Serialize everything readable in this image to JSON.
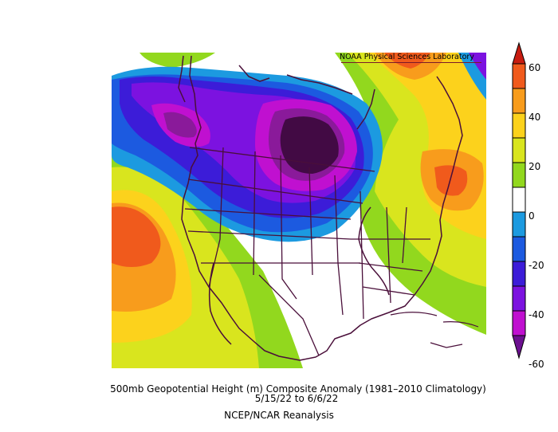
{
  "credit": "NOAA Physical Sciences Laboratory",
  "caption": {
    "line1": "500mb Geopotential Height (m) Composite Anomaly (1981–2010 Climatology)",
    "line2": "5/15/22  to 6/6/22",
    "line3": "NCEP/NCAR Reanalysis"
  },
  "colorbar": {
    "labels": [
      "60",
      "40",
      "20",
      "0",
      "-20",
      "-40",
      "-60"
    ],
    "bands": [
      {
        "from": 60,
        "color": "#c81c10"
      },
      {
        "from": 50,
        "color": "#f05a1c"
      },
      {
        "from": 40,
        "color": "#f89c1c"
      },
      {
        "from": 30,
        "color": "#fcd21c"
      },
      {
        "from": 20,
        "color": "#d9e51e"
      },
      {
        "from": 10,
        "color": "#92d81e"
      },
      {
        "from": 0,
        "color": "#ffffff"
      },
      {
        "from": -10,
        "color": "#1c9ae0"
      },
      {
        "from": -20,
        "color": "#1c5ae0"
      },
      {
        "from": -30,
        "color": "#3c1cd8"
      },
      {
        "from": -40,
        "color": "#7c12e0"
      },
      {
        "from": -50,
        "color": "#c010d0"
      },
      {
        "from": -60,
        "color": "#6c1090"
      }
    ]
  },
  "palette": {
    "coast": "#4a0f3a",
    "low_center": "#420a44",
    "low_ring": "#8a1a9a"
  }
}
